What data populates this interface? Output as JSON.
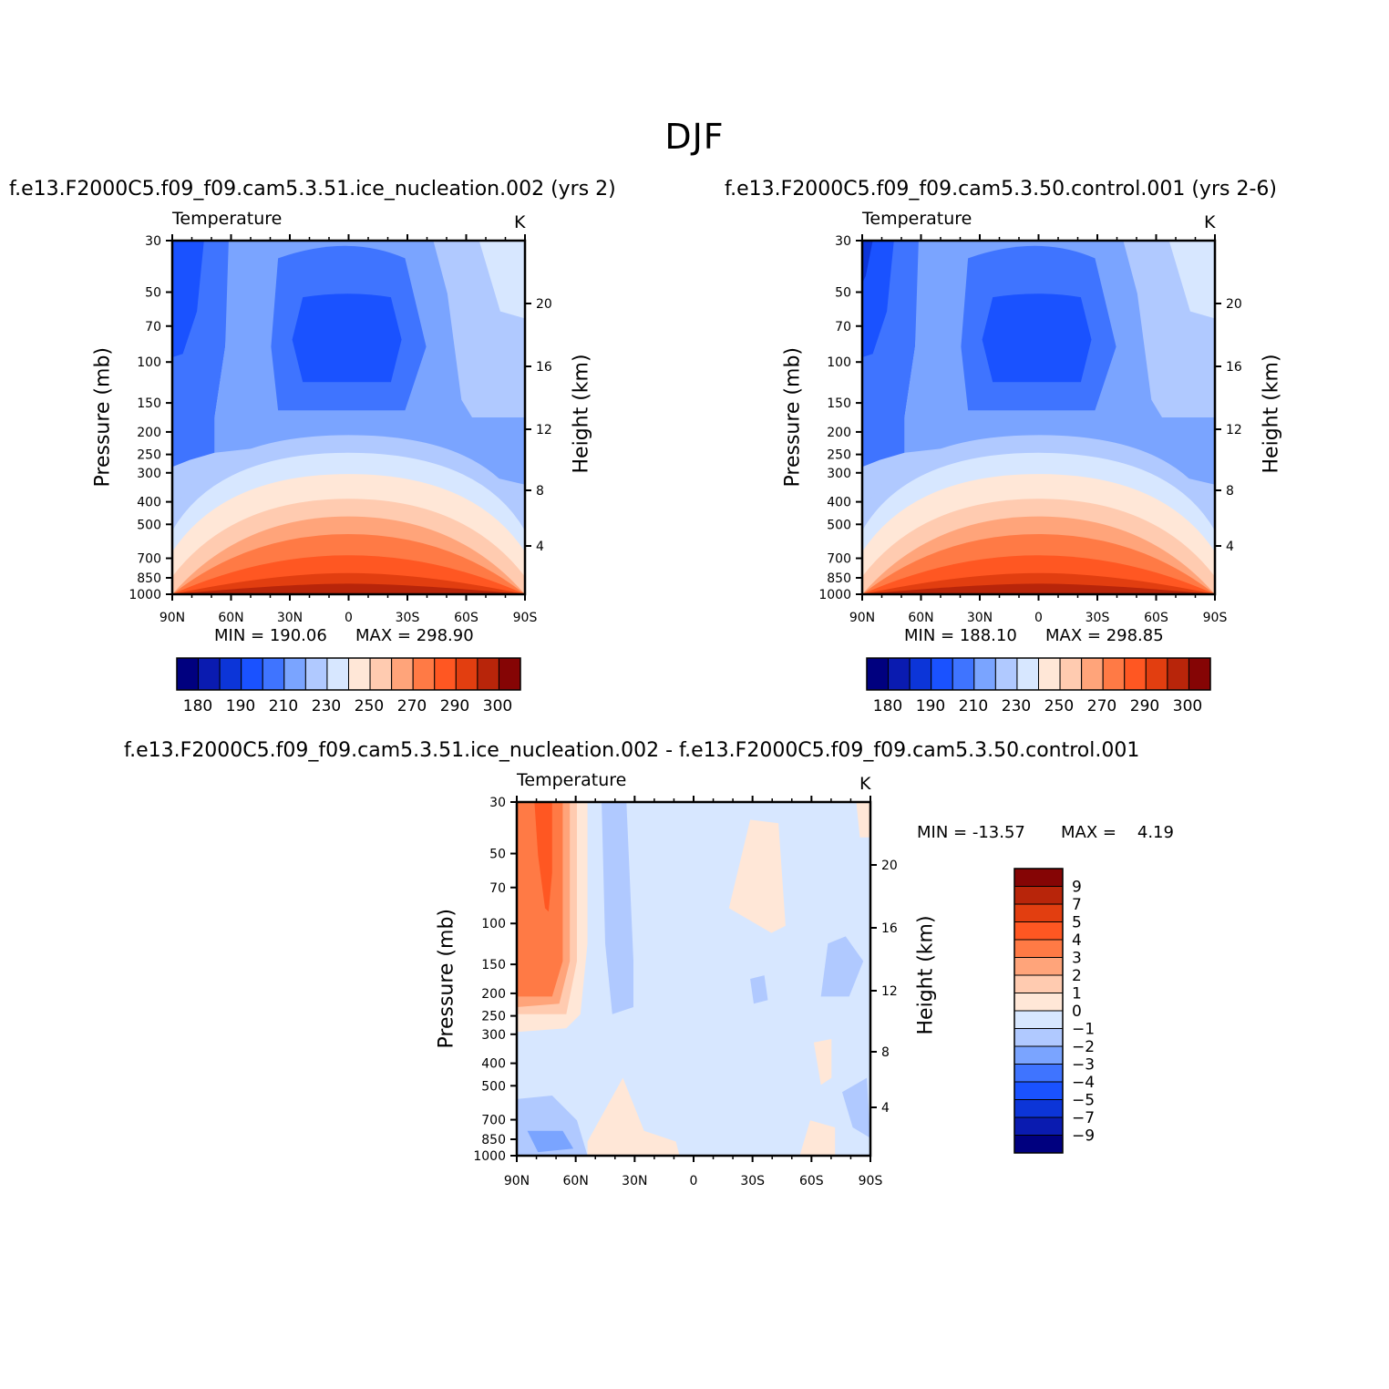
{
  "page_title": "DJF",
  "chart_data": [
    {
      "type": "heatmap",
      "panel_title": "f.e13.F2000C5.f09_f09.cam5.3.51.ice_nucleation.002 (yrs 2)",
      "variable": "Temperature",
      "units": "K",
      "ylabel": "Pressure (mb)",
      "ylabel_right": "Height (km)",
      "x_ticks": [
        "90N",
        "60N",
        "30N",
        "0",
        "30S",
        "60S",
        "90S"
      ],
      "y_ticks": [
        "30",
        "50",
        "70",
        "100",
        "150",
        "200",
        "250",
        "300",
        "400",
        "500",
        "700",
        "850",
        "1000"
      ],
      "y_ticks_right": [
        "20",
        "16",
        "12",
        "8",
        "4"
      ],
      "min_text": "MIN = 190.06",
      "max_text": "MAX = 298.90",
      "colorbar_labels": [
        "180",
        "190",
        "210",
        "230",
        "250",
        "270",
        "290",
        "300"
      ]
    },
    {
      "type": "heatmap",
      "panel_title": "f.e13.F2000C5.f09_f09.cam5.3.50.control.001 (yrs 2-6)",
      "variable": "Temperature",
      "units": "K",
      "ylabel": "Pressure (mb)",
      "ylabel_right": "Height (km)",
      "x_ticks": [
        "90N",
        "60N",
        "30N",
        "0",
        "30S",
        "60S",
        "90S"
      ],
      "y_ticks": [
        "30",
        "50",
        "70",
        "100",
        "150",
        "200",
        "250",
        "300",
        "400",
        "500",
        "700",
        "850",
        "1000"
      ],
      "y_ticks_right": [
        "20",
        "16",
        "12",
        "8",
        "4"
      ],
      "min_text": "MIN = 188.10",
      "max_text": "MAX = 298.85",
      "colorbar_labels": [
        "180",
        "190",
        "210",
        "230",
        "250",
        "270",
        "290",
        "300"
      ]
    },
    {
      "type": "heatmap",
      "panel_title": "f.e13.F2000C5.f09_f09.cam5.3.51.ice_nucleation.002 - f.e13.F2000C5.f09_f09.cam5.3.50.control.001",
      "variable": "Temperature",
      "units": "K",
      "ylabel": "Pressure (mb)",
      "ylabel_right": "Height (km)",
      "x_ticks": [
        "90N",
        "60N",
        "30N",
        "0",
        "30S",
        "60S",
        "90S"
      ],
      "y_ticks": [
        "30",
        "50",
        "70",
        "100",
        "150",
        "200",
        "250",
        "300",
        "400",
        "500",
        "700",
        "850",
        "1000"
      ],
      "y_ticks_right": [
        "20",
        "16",
        "12",
        "8",
        "4"
      ],
      "min_text": "MIN = -13.57",
      "max_text": "MAX =    4.19",
      "colorbar_labels": [
        "9",
        "7",
        "5",
        "4",
        "3",
        "2",
        "1",
        "0",
        "-1",
        "-2",
        "-3",
        "-4",
        "-5",
        "-7",
        "-9"
      ]
    }
  ],
  "colors": {
    "temp_palette": [
      "#00007f",
      "#0a1bb0",
      "#0c35d8",
      "#1a52ff",
      "#3f74ff",
      "#7aa4ff",
      "#b0c9ff",
      "#d7e7ff",
      "#ffe7d7",
      "#ffcbb0",
      "#ffa47a",
      "#ff7a45",
      "#ff5722",
      "#e23e10",
      "#b8250a",
      "#850505"
    ],
    "diff_palette": [
      "#850505",
      "#b8250a",
      "#e23e10",
      "#ff5722",
      "#ff7a45",
      "#ffa47a",
      "#ffcbb0",
      "#ffe7d7",
      "#d7e7ff",
      "#b0c9ff",
      "#7aa4ff",
      "#3f74ff",
      "#1a52ff",
      "#0c35d8",
      "#0a1bb0",
      "#00007f"
    ]
  }
}
